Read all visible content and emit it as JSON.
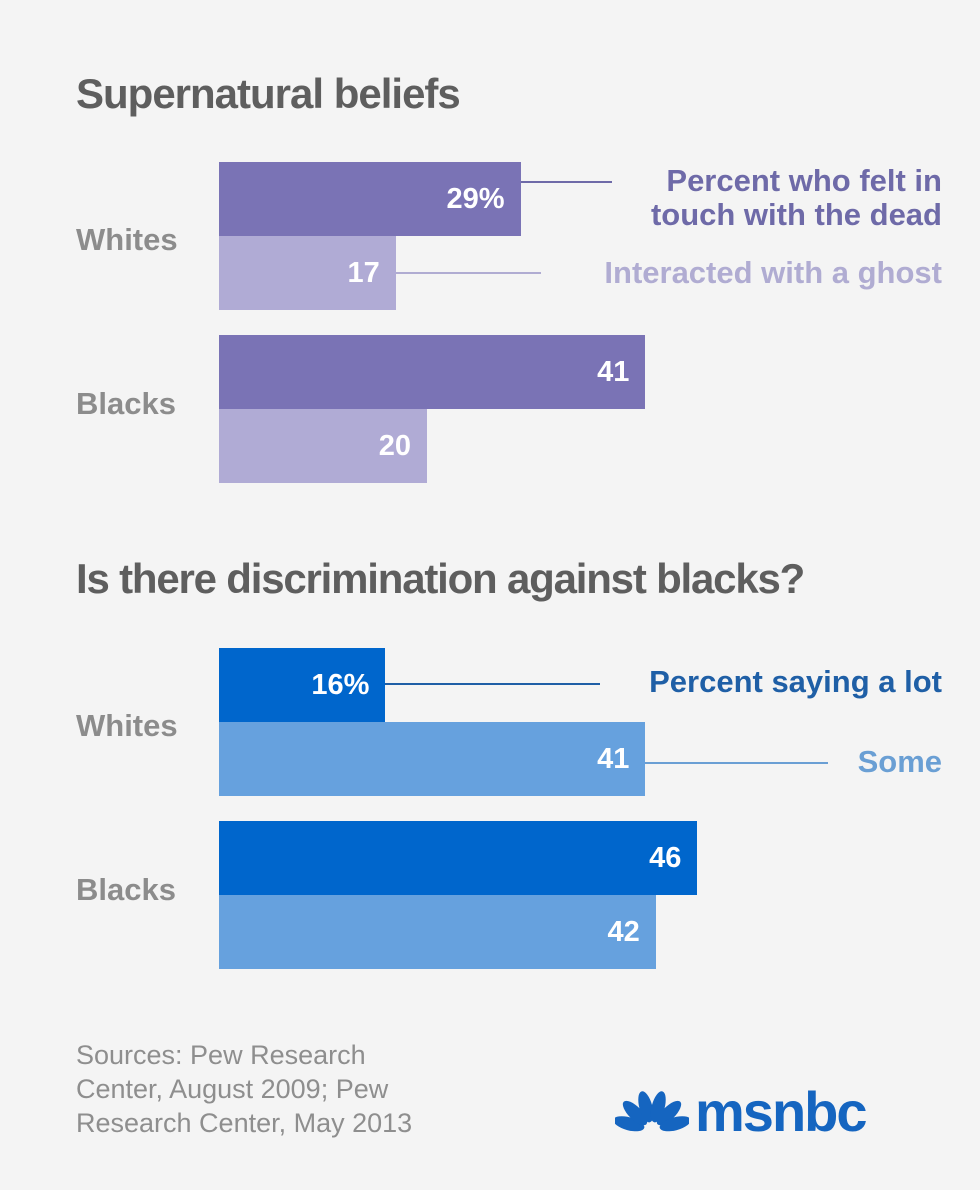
{
  "colors": {
    "background": "#f4f4f4",
    "title": "#5e5e5e",
    "category_label": "#8c8c8c",
    "purple_dark": "#7a73b5",
    "purple_light": "#b0abd5",
    "blue_dark": "#0066cc",
    "blue_light": "#66a1de",
    "legend_purple_dark": "#6e6aa8",
    "legend_purple_light": "#b0acd2",
    "legend_blue_dark": "#1f5fa6",
    "legend_blue_light": "#6a9fd4",
    "logo": "#1565c0",
    "sources": "#8e8e8e"
  },
  "chart_data": [
    {
      "type": "bar",
      "orientation": "horizontal",
      "title": "Supernatural beliefs",
      "categories": [
        "Whites",
        "Blacks"
      ],
      "series": [
        {
          "name": "Percent who felt in touch with the dead",
          "values": [
            29,
            41
          ],
          "labels": [
            "29%",
            "41"
          ],
          "color": "#7a73b5"
        },
        {
          "name": "Interacted with a ghost",
          "values": [
            17,
            20
          ],
          "labels": [
            "17",
            "20"
          ],
          "color": "#b0abd5"
        }
      ],
      "xlim": [
        0,
        100
      ],
      "grid": false,
      "legend": "right, inline leader lines"
    },
    {
      "type": "bar",
      "orientation": "horizontal",
      "title": "Is there discrimination against blacks?",
      "categories": [
        "Whites",
        "Blacks"
      ],
      "series": [
        {
          "name": "Percent saying a lot",
          "values": [
            16,
            46
          ],
          "labels": [
            "16%",
            "46"
          ],
          "color": "#0066cc"
        },
        {
          "name": "Some",
          "values": [
            41,
            42
          ],
          "labels": [
            "41",
            "42"
          ],
          "color": "#66a1de"
        }
      ],
      "xlim": [
        0,
        100
      ],
      "grid": false,
      "legend": "right, inline leader lines"
    }
  ],
  "legend_lines": {
    "chart1_series1": [
      "Percent who felt in",
      "touch with the dead"
    ],
    "chart1_series2": "Interacted with a ghost",
    "chart2_series1": "Percent saying a lot",
    "chart2_series2": "Some"
  },
  "footer": {
    "sources_lines": [
      "Sources: Pew Research",
      "Center, August 2009; Pew",
      "Research Center, May 2013"
    ],
    "logo_text": "msnbc",
    "logo_icon": "nbc-peacock-icon"
  }
}
